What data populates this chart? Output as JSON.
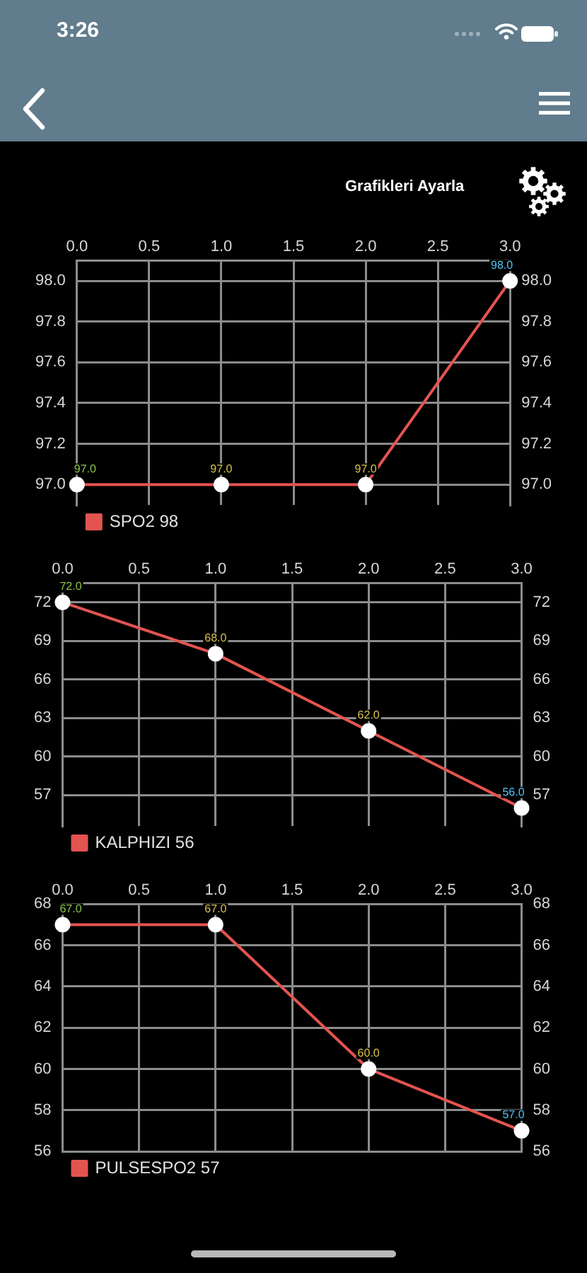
{
  "chart_data": [
    {
      "type": "other",
      "annotations": [
        "3:26",
        "Grafikleri Ayarla"
      ]
    },
    {
      "type": "line",
      "x": [
        0,
        1,
        2,
        3
      ],
      "series": [
        {
          "name": "SPO2 98",
          "color": "#e35450",
          "values": [
            97,
            97,
            97,
            98
          ],
          "value_labels": [
            "97.0",
            "97.0",
            "97.0",
            "98.0"
          ]
        }
      ],
      "xlim": [
        0,
        3
      ],
      "xticks": [
        {
          "value": 0,
          "label": "0.0"
        },
        0.5,
        {
          "value": 1,
          "label": "1.0"
        },
        1.5,
        {
          "value": 2,
          "label": "2.0"
        },
        2.5,
        {
          "value": 3,
          "label": "3.0"
        }
      ],
      "ylim": [
        96.9,
        98.1
      ],
      "yticks": [
        {
          "value": 97,
          "label": "97.0"
        },
        97.2,
        97.4,
        97.6,
        97.8,
        {
          "value": 98,
          "label": "98.0"
        }
      ],
      "y2lim": [
        96.9,
        98.1
      ],
      "y2ticks": [
        {
          "value": 97,
          "label": "97.0"
        },
        97.2,
        97.4,
        97.6,
        97.8,
        {
          "value": 98,
          "label": "98.0"
        }
      ],
      "grid": true,
      "legend": "bottom left",
      "marker": "circle",
      "line_style": "solid"
    },
    {
      "type": "line",
      "x": [
        0,
        1,
        2,
        3
      ],
      "series": [
        {
          "name": "KALPHIZI 56",
          "color": "#e35450",
          "values": [
            72,
            68,
            62,
            56
          ],
          "value_labels": [
            "72.0",
            "68.0",
            "62.0",
            "56.0"
          ]
        }
      ],
      "xlim": [
        0,
        3
      ],
      "xticks": [
        {
          "value": 0,
          "label": "0.0"
        },
        0.5,
        {
          "value": 1,
          "label": "1.0"
        },
        1.5,
        {
          "value": 2,
          "label": "2.0"
        },
        2.5,
        {
          "value": 3,
          "label": "3.0"
        }
      ],
      "ylim": [
        54.6,
        73.5
      ],
      "yticks": [
        57,
        60,
        63,
        66,
        69,
        72
      ],
      "y2lim": [
        54.6,
        73.5
      ],
      "y2ticks": [
        57,
        60,
        63,
        66,
        69,
        72
      ],
      "grid": true,
      "legend": "bottom left",
      "marker": "circle",
      "line_style": "solid"
    },
    {
      "type": "line",
      "x": [
        0,
        1,
        2,
        3
      ],
      "series": [
        {
          "name": "PULSESPO2 57",
          "color": "#e35450",
          "values": [
            67,
            67,
            60,
            57
          ],
          "value_labels": [
            "67.0",
            "67.0",
            "60.0",
            "57.0"
          ]
        }
      ],
      "xlim": [
        0,
        3
      ],
      "xticks": [
        {
          "value": 0,
          "label": "0.0"
        },
        0.5,
        {
          "value": 1,
          "label": "1.0"
        },
        1.5,
        {
          "value": 2,
          "label": "2.0"
        },
        2.5,
        {
          "value": 3,
          "label": "3.0"
        }
      ],
      "ylim": [
        56,
        68
      ],
      "yticks": [
        56,
        58,
        60,
        62,
        64,
        66,
        68
      ],
      "y2lim": [
        56,
        68
      ],
      "y2ticks": [
        56,
        58,
        60,
        62,
        64,
        66,
        68
      ],
      "grid": true,
      "legend": "bottom left",
      "marker": "circle",
      "line_style": "solid"
    }
  ]
}
